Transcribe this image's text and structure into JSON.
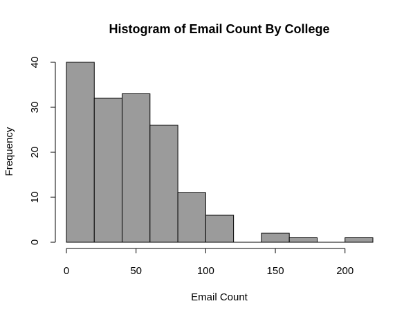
{
  "chart_data": {
    "type": "bar",
    "subtype": "histogram",
    "title": "Histogram of Email Count By College",
    "xlabel": "Email Count",
    "ylabel": "Frequency",
    "bin_width": 20,
    "bins": [
      {
        "start": 0,
        "end": 20,
        "count": 40
      },
      {
        "start": 20,
        "end": 40,
        "count": 32
      },
      {
        "start": 40,
        "end": 60,
        "count": 33
      },
      {
        "start": 60,
        "end": 80,
        "count": 26
      },
      {
        "start": 80,
        "end": 100,
        "count": 11
      },
      {
        "start": 100,
        "end": 120,
        "count": 6
      },
      {
        "start": 120,
        "end": 140,
        "count": 0
      },
      {
        "start": 140,
        "end": 160,
        "count": 2
      },
      {
        "start": 160,
        "end": 180,
        "count": 1
      },
      {
        "start": 180,
        "end": 200,
        "count": 0
      },
      {
        "start": 200,
        "end": 220,
        "count": 1
      }
    ],
    "xlim": [
      0,
      220
    ],
    "ylim": [
      0,
      40
    ],
    "xticks": [
      "0",
      "50",
      "100",
      "150",
      "200"
    ],
    "xtick_values": [
      0,
      50,
      100,
      150,
      200
    ],
    "yticks": [
      "0",
      "10",
      "20",
      "30",
      "40"
    ],
    "ytick_values": [
      0,
      10,
      20,
      30,
      40
    ],
    "grid": false,
    "bar_color": "#9b9b9b",
    "edge_color": "#000000"
  }
}
